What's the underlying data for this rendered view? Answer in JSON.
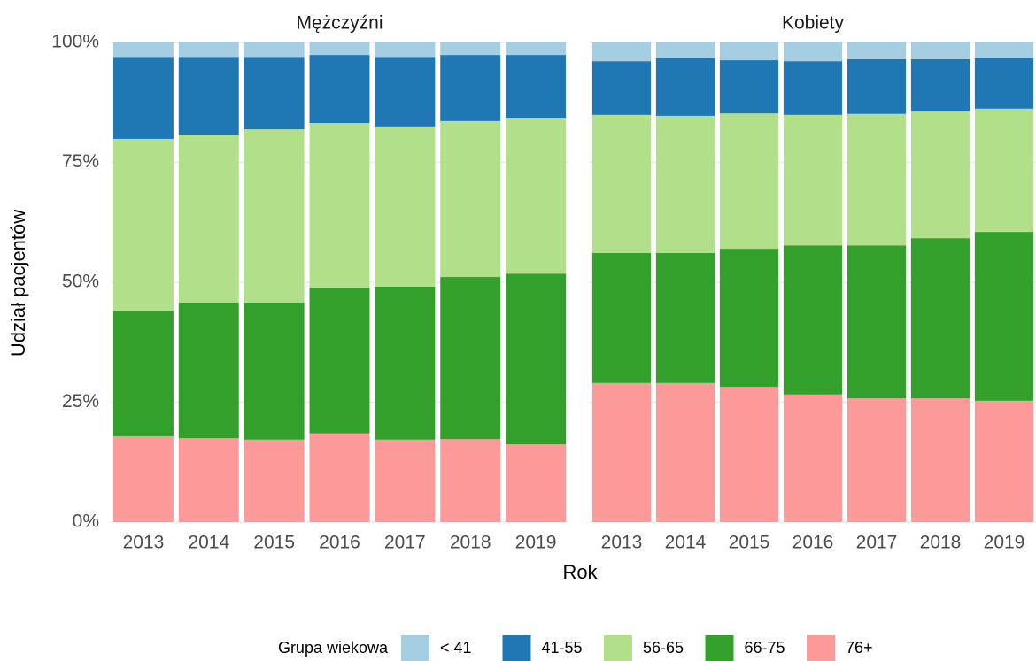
{
  "chart_data": [
    {
      "type": "stacked_bar",
      "title": "Mężczyźni",
      "x_label": "Rok",
      "y_label": "Udział pacjentów",
      "legend_title": "Grupa wiekowa",
      "legend": "bottom",
      "grid": true,
      "categories": [
        "2013",
        "2014",
        "2015",
        "2016",
        "2017",
        "2018",
        "2019"
      ],
      "ylim": [
        0,
        100
      ],
      "yticks": [
        {
          "value": 0,
          "label": "0%"
        },
        {
          "value": 25,
          "label": "25%"
        },
        {
          "value": 50,
          "label": "50%"
        },
        {
          "value": 75,
          "label": "75%"
        },
        {
          "value": 100,
          "label": "100%"
        }
      ],
      "series": [
        {
          "name": "< 41",
          "color": "#a6cee3",
          "values": [
            3.0,
            3.0,
            3.0,
            2.6,
            3.0,
            2.6,
            2.6
          ]
        },
        {
          "name": "41-55",
          "color": "#1f78b4",
          "values": [
            17.1,
            16.2,
            15.1,
            14.2,
            14.5,
            13.8,
            13.1
          ]
        },
        {
          "name": "56-65",
          "color": "#b2df8a",
          "values": [
            35.8,
            35.0,
            36.1,
            34.3,
            33.4,
            32.5,
            32.5
          ]
        },
        {
          "name": "66-75",
          "color": "#33a02c",
          "values": [
            26.2,
            28.3,
            28.6,
            30.4,
            31.9,
            33.8,
            35.6
          ]
        },
        {
          "name": "76+",
          "color": "#fb9a99",
          "values": [
            17.9,
            17.5,
            17.2,
            18.5,
            17.2,
            17.3,
            16.2
          ]
        }
      ]
    },
    {
      "type": "stacked_bar",
      "title": "Kobiety",
      "grid": true,
      "categories": [
        "2013",
        "2014",
        "2015",
        "2016",
        "2017",
        "2018",
        "2019"
      ],
      "ylim": [
        0,
        100
      ],
      "series": [
        {
          "color": "#a6cee3",
          "values": [
            3.9,
            3.3,
            3.7,
            3.9,
            3.5,
            3.5,
            3.3
          ]
        },
        {
          "color": "#1f78b4",
          "values": [
            11.2,
            12.0,
            11.1,
            11.2,
            11.4,
            10.9,
            10.5
          ]
        },
        {
          "color": "#b2df8a",
          "values": [
            28.8,
            28.6,
            28.2,
            27.2,
            27.4,
            26.4,
            25.7
          ]
        },
        {
          "color": "#33a02c",
          "values": [
            27.1,
            27.1,
            28.8,
            31.1,
            31.9,
            33.4,
            35.2
          ]
        },
        {
          "color": "#fb9a99",
          "values": [
            29.0,
            29.0,
            28.2,
            26.6,
            25.8,
            25.8,
            25.3
          ]
        }
      ]
    }
  ]
}
